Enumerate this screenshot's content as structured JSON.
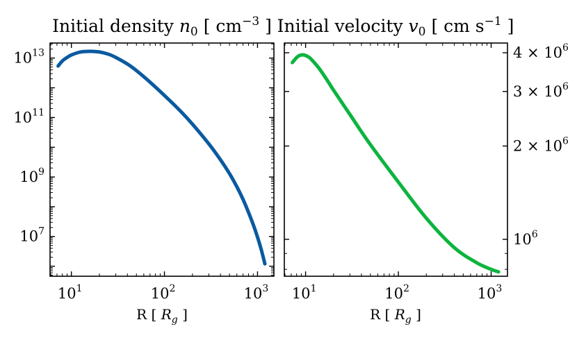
{
  "chart_data": [
    {
      "type": "line",
      "title": "Initial density n₀ [ cm⁻³ ]",
      "title_parts": {
        "pre": "Initial density ",
        "var": "n",
        "sub": "0",
        "unit_pre": " [ cm",
        "unit_exp": "−3",
        "unit_post": " ]"
      },
      "xlabel_parts": {
        "pre": "R [ ",
        "var": "R",
        "sub": "g",
        "post": " ]"
      },
      "xscale": "log",
      "yscale": "log",
      "xlim": [
        5.9,
        1500
      ],
      "ylim": [
        460000.0,
        32000000000000.0
      ],
      "x_ticks": [
        {
          "base": "10",
          "exp": "1",
          "value": 10
        },
        {
          "base": "10",
          "exp": "2",
          "value": 100
        },
        {
          "base": "10",
          "exp": "3",
          "value": 1000
        }
      ],
      "y_ticks": [
        {
          "base": "10",
          "exp": "7",
          "value": 10000000.0
        },
        {
          "base": "10",
          "exp": "9",
          "value": 1000000000.0
        },
        {
          "base": "10",
          "exp": "11",
          "value": 100000000000.0
        },
        {
          "base": "10",
          "exp": "13",
          "value": 10000000000000.0
        }
      ],
      "color": "#0a5aa0",
      "series": [
        {
          "name": "n0",
          "x": [
            7.2,
            8,
            9,
            10,
            12,
            14,
            16,
            20,
            25,
            30,
            40,
            50,
            70,
            100,
            150,
            200,
            300,
            400,
            500,
            600,
            700,
            800,
            900,
            1000,
            1100,
            1200
          ],
          "y": [
            5400000000000.0,
            8000000000000.0,
            10500000000000.0,
            12700000000000.0,
            15500000000000.0,
            16600000000000.0,
            16800000000000.0,
            16000000000000.0,
            13500000000000.0,
            10500000000000.0,
            6300000000000.0,
            3800000000000.0,
            1550000000000.0,
            550000000000.0,
            160000000000.0,
            60000000000.0,
            13000000000.0,
            3800000000.0,
            1300000000.0,
            470000000.0,
            175000000.0,
            65000000.0,
            25000000.0,
            9500000.0,
            3500000.0,
            1200000.0
          ]
        }
      ]
    },
    {
      "type": "line",
      "title": "Initial velocity v₀ [ cm s⁻¹ ]",
      "title_parts": {
        "pre": "Initial velocity ",
        "var": "v",
        "sub": "0",
        "unit_pre": " [ cm s",
        "unit_exp": "−1",
        "unit_post": " ]"
      },
      "xlabel_parts": {
        "pre": "R [ ",
        "var": "R",
        "sub": "g",
        "post": " ]"
      },
      "xscale": "log",
      "yscale": "log",
      "xlim": [
        5.9,
        1500
      ],
      "ylim": [
        760000.0,
        4300000.0
      ],
      "x_ticks": [
        {
          "base": "10",
          "exp": "1",
          "value": 10
        },
        {
          "base": "10",
          "exp": "2",
          "value": 100
        },
        {
          "base": "10",
          "exp": "3",
          "value": 1000
        }
      ],
      "y_ticks": [
        {
          "mant": "4 × ",
          "base": "10",
          "exp": "6",
          "value": 4000000.0
        },
        {
          "mant": "3 × ",
          "base": "10",
          "exp": "6",
          "value": 3000000.0
        },
        {
          "mant": "2 × ",
          "base": "10",
          "exp": "6",
          "value": 2000000.0
        },
        {
          "mant": "",
          "base": "10",
          "exp": "6",
          "value": 1000000.0
        }
      ],
      "y_minor_ticks": [
        900000.0,
        800000.0
      ],
      "y_side": "right",
      "color": "#0cb43e",
      "series": [
        {
          "name": "v0",
          "x": [
            7.2,
            8,
            8.6,
            9.3,
            10,
            11,
            12,
            14,
            17,
            20,
            30,
            50,
            100,
            200,
            400,
            700,
            1000,
            1200
          ],
          "y": [
            3720000.0,
            3860000.0,
            3920000.0,
            3940000.0,
            3920000.0,
            3860000.0,
            3760000.0,
            3560000.0,
            3270000.0,
            3030000.0,
            2530000.0,
            2020000.0,
            1530000.0,
            1170000.0,
            940000.0,
            840000.0,
            800000.0,
            785000.0
          ]
        }
      ]
    }
  ]
}
